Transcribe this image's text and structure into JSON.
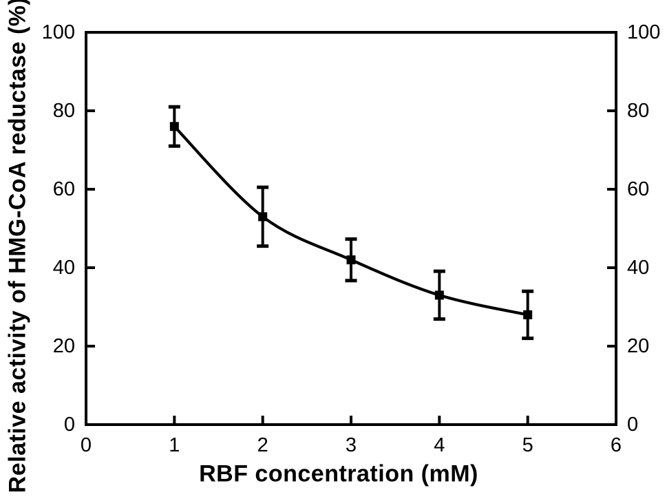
{
  "figure": {
    "background_color": "#ffffff",
    "ink_color": "#000000"
  },
  "chart_data": {
    "type": "line",
    "title": "",
    "xlabel": "RBF concentration (mM)",
    "ylabel": "Relative activity of HMG-CoA reductase (%)",
    "x": [
      1,
      2,
      3,
      4,
      5
    ],
    "series": [
      {
        "name": "HMG-CoA reductase relative activity",
        "values": [
          76,
          53,
          42,
          33,
          28
        ],
        "yerr": [
          5,
          7.5,
          5.3,
          6.1,
          6
        ]
      }
    ],
    "xlim": [
      0,
      6
    ],
    "ylim": [
      0,
      100
    ],
    "x_ticks": [
      0,
      1,
      2,
      3,
      4,
      5,
      6
    ],
    "y_ticks_left": [
      0,
      20,
      40,
      60,
      80,
      100
    ],
    "y_ticks_right": [
      0,
      20,
      40,
      60,
      80,
      100
    ],
    "grid": false,
    "legend": "none",
    "marker": "filled-square",
    "line_style": "smooth-solid",
    "axes_box": true,
    "tick_direction": "in"
  }
}
